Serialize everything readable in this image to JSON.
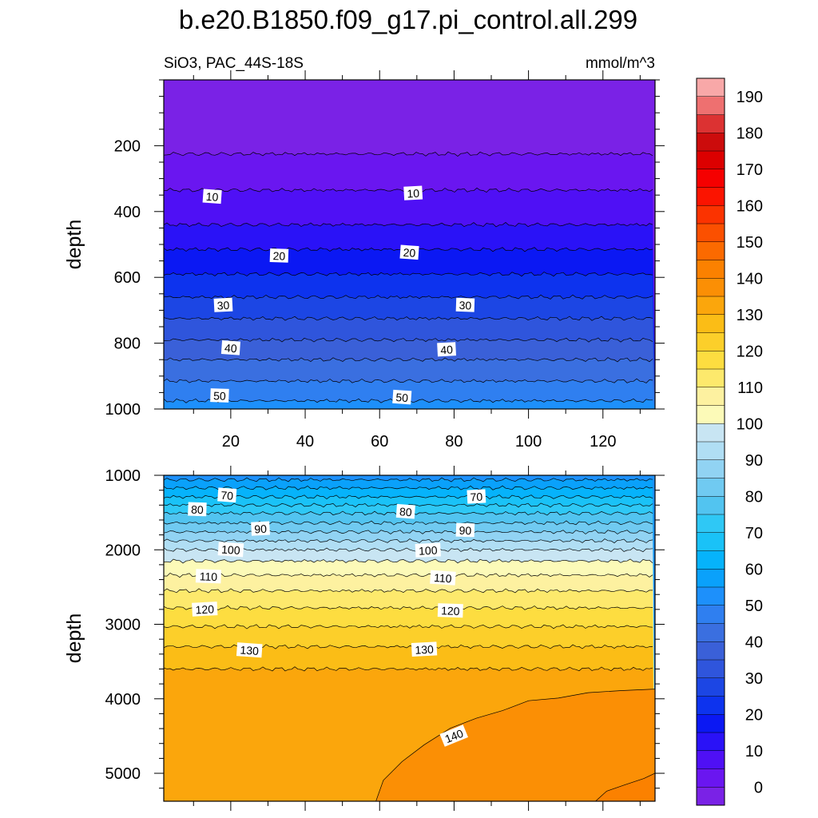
{
  "chart_data": {
    "type": "contour",
    "title": "b.e20.B1850.f09_g17.pi_control.all.299",
    "subtitle_left": "SiO3, PAC_44S-18S",
    "units": "mmol/m^3",
    "x": {
      "range": [
        2,
        134
      ],
      "ticks": [
        20,
        40,
        60,
        80,
        100,
        120
      ]
    },
    "panels": [
      {
        "name": "upper",
        "ylabel": "depth",
        "ylim": [
          0,
          1000
        ],
        "yticks": [
          200,
          400,
          600,
          800,
          1000
        ],
        "show_x_tick_labels": true,
        "contours": [
          {
            "value": 5,
            "depth": 225
          },
          {
            "value": 10,
            "depth": 335
          },
          {
            "value": 15,
            "depth": 440
          },
          {
            "value": 20,
            "depth": 515
          },
          {
            "value": 25,
            "depth": 590
          },
          {
            "value": 30,
            "depth": 660
          },
          {
            "value": 35,
            "depth": 725
          },
          {
            "value": 40,
            "depth": 790
          },
          {
            "value": 45,
            "depth": 850
          },
          {
            "value": 50,
            "depth": 915
          },
          {
            "value": 55,
            "depth": 975
          }
        ],
        "labels": [
          {
            "text": "10",
            "x": 15,
            "depth": 355
          },
          {
            "text": "10",
            "x": 69,
            "depth": 345
          },
          {
            "text": "20",
            "x": 33,
            "depth": 535
          },
          {
            "text": "20",
            "x": 68,
            "depth": 525
          },
          {
            "text": "30",
            "x": 18,
            "depth": 685
          },
          {
            "text": "30",
            "x": 83,
            "depth": 685
          },
          {
            "text": "40",
            "x": 20,
            "depth": 815
          },
          {
            "text": "40",
            "x": 78,
            "depth": 820
          },
          {
            "text": "50",
            "x": 17,
            "depth": 960
          },
          {
            "text": "50",
            "x": 66,
            "depth": 965
          }
        ]
      },
      {
        "name": "lower",
        "ylabel": "depth",
        "ylim": [
          1000,
          5375
        ],
        "yticks": [
          1000,
          2000,
          3000,
          4000,
          5000
        ],
        "show_x_tick_labels": false,
        "contours": [
          {
            "value": 60,
            "depth": 1060
          },
          {
            "value": 65,
            "depth": 1170
          },
          {
            "value": 70,
            "depth": 1290
          },
          {
            "value": 75,
            "depth": 1400
          },
          {
            "value": 80,
            "depth": 1510
          },
          {
            "value": 85,
            "depth": 1640
          },
          {
            "value": 90,
            "depth": 1760
          },
          {
            "value": 95,
            "depth": 1880
          },
          {
            "value": 100,
            "depth": 2000
          },
          {
            "value": 105,
            "depth": 2150
          },
          {
            "value": 110,
            "depth": 2340
          },
          {
            "value": 115,
            "depth": 2550
          },
          {
            "value": 120,
            "depth": 2780
          },
          {
            "value": 125,
            "depth": 3030
          },
          {
            "value": 130,
            "depth": 3300
          },
          {
            "value": 135,
            "depth": 3600
          }
        ],
        "labels": [
          {
            "text": "70",
            "x": 19,
            "depth": 1270
          },
          {
            "text": "70",
            "x": 86,
            "depth": 1290
          },
          {
            "text": "80",
            "x": 11,
            "depth": 1460
          },
          {
            "text": "80",
            "x": 67,
            "depth": 1490
          },
          {
            "text": "90",
            "x": 28,
            "depth": 1720
          },
          {
            "text": "90",
            "x": 83,
            "depth": 1740
          },
          {
            "text": "100",
            "x": 20,
            "depth": 2000
          },
          {
            "text": "100",
            "x": 73,
            "depth": 2010
          },
          {
            "text": "110",
            "x": 14,
            "depth": 2360
          },
          {
            "text": "110",
            "x": 77,
            "depth": 2380
          },
          {
            "text": "120",
            "x": 13,
            "depth": 2800
          },
          {
            "text": "120",
            "x": 79,
            "depth": 2820
          },
          {
            "text": "130",
            "x": 25,
            "depth": 3350
          },
          {
            "text": "130",
            "x": 72,
            "depth": 3340
          },
          {
            "text": "140",
            "x": 80,
            "depth": 4500
          }
        ],
        "region_140": {
          "value": 140,
          "boundary": [
            [
              59,
              5375
            ],
            [
              61,
              5100
            ],
            [
              66,
              4850
            ],
            [
              72,
              4600
            ],
            [
              79,
              4400
            ],
            [
              86,
              4250
            ],
            [
              93,
              4150
            ],
            [
              100,
              4050
            ],
            [
              108,
              3980
            ],
            [
              116,
              3930
            ],
            [
              125,
              3890
            ],
            [
              134,
              3870
            ]
          ]
        },
        "region_145": {
          "value": 145,
          "boundary": [
            [
              118,
              5375
            ],
            [
              121,
              5250
            ],
            [
              126,
              5150
            ],
            [
              131,
              5060
            ],
            [
              134,
              5000
            ]
          ]
        }
      }
    ],
    "colorbar": {
      "levels": [
        0,
        5,
        10,
        15,
        20,
        25,
        30,
        35,
        40,
        45,
        50,
        55,
        60,
        65,
        70,
        75,
        80,
        85,
        90,
        95,
        100,
        105,
        110,
        115,
        120,
        125,
        130,
        135,
        140,
        145,
        150,
        155,
        160,
        165,
        170,
        175,
        180,
        185,
        190,
        195
      ],
      "labels": [
        "0",
        "10",
        "20",
        "30",
        "40",
        "50",
        "60",
        "70",
        "80",
        "90",
        "100",
        "110",
        "120",
        "130",
        "140",
        "150",
        "160",
        "170",
        "180",
        "190"
      ],
      "colors": [
        "#7a22e6",
        "#6a16f0",
        "#4f10f5",
        "#2a12f7",
        "#0b18f3",
        "#0d33ee",
        "#1c46e4",
        "#2f55dc",
        "#3a60d8",
        "#3a6fe0",
        "#2f7ff0",
        "#1d90fb",
        "#0aa1fb",
        "#06b3fb",
        "#1ac2f7",
        "#2fc8f5",
        "#52c4f0",
        "#70caf1",
        "#91d3f3",
        "#b0def4",
        "#c8e5f3",
        "#fcfab8",
        "#fdf1a0",
        "#fde96c",
        "#fddd40",
        "#fccf2a",
        "#fbbd16",
        "#fba60c",
        "#fb8f05",
        "#fb8100",
        "#fb6a00",
        "#fb5000",
        "#fb3300",
        "#fb1400",
        "#f50000",
        "#dc0000",
        "#cc0c0c",
        "#dc3232",
        "#ee7070",
        "#f8a8a8"
      ]
    }
  }
}
